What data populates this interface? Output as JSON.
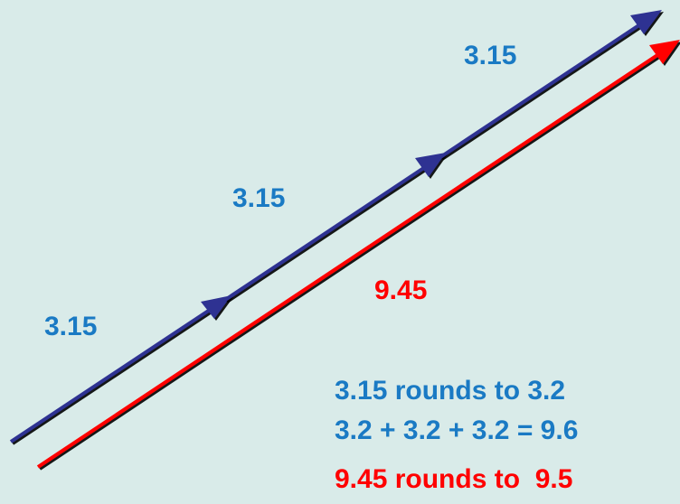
{
  "segments": {
    "seg1_label": "3.15",
    "seg2_label": "3.15",
    "seg3_label": "3.15"
  },
  "total_label": "9.45",
  "notes": {
    "line1": "3.15 rounds to 3.2",
    "line2": "3.2 + 3.2 + 3.2 = 9.6",
    "line3": "9.45 rounds to  9.5"
  },
  "colors": {
    "background": "#d9ebe9",
    "segment_arrow": "#2e3192",
    "total_arrow": "#ff0000",
    "blue_text": "#1a7ac4",
    "red_text": "#ff0000"
  }
}
